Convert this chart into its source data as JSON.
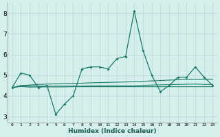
{
  "xlabel": "Humidex (Indice chaleur)",
  "x": [
    0,
    1,
    2,
    3,
    4,
    5,
    6,
    7,
    8,
    9,
    10,
    11,
    12,
    13,
    14,
    15,
    16,
    17,
    18,
    19,
    20,
    21,
    22,
    23
  ],
  "line1": [
    4.4,
    5.1,
    5.0,
    4.4,
    4.5,
    3.1,
    3.6,
    4.0,
    5.3,
    5.4,
    5.4,
    5.3,
    5.8,
    5.9,
    8.1,
    6.2,
    5.0,
    4.2,
    4.5,
    4.9,
    4.9,
    5.4,
    4.9,
    4.5
  ],
  "line2": [
    4.4,
    4.45,
    4.42,
    4.43,
    4.43,
    4.43,
    4.43,
    4.44,
    4.44,
    4.44,
    4.44,
    4.44,
    4.44,
    4.44,
    4.44,
    4.44,
    4.44,
    4.44,
    4.44,
    4.44,
    4.44,
    4.44,
    4.44,
    4.44
  ],
  "line3": [
    4.4,
    4.5,
    4.52,
    4.55,
    4.57,
    4.58,
    4.59,
    4.6,
    4.61,
    4.63,
    4.64,
    4.65,
    4.66,
    4.67,
    4.68,
    4.7,
    4.72,
    4.74,
    4.76,
    4.78,
    4.79,
    4.8,
    4.8,
    4.8
  ],
  "line4": [
    4.4,
    4.47,
    4.47,
    4.47,
    4.47,
    4.47,
    4.47,
    4.47,
    4.47,
    4.48,
    4.48,
    4.48,
    4.48,
    4.48,
    4.48,
    4.5,
    4.52,
    4.53,
    4.54,
    4.55,
    4.56,
    4.57,
    4.55,
    4.55
  ],
  "ylim": [
    2.7,
    8.5
  ],
  "xlim": [
    -0.5,
    23.5
  ],
  "yticks": [
    3,
    4,
    5,
    6,
    7,
    8
  ],
  "xtick_labels": [
    "0",
    "1",
    "2",
    "3",
    "4",
    "5",
    "6",
    "7",
    "8",
    "9",
    "10",
    "11",
    "12",
    "13",
    "14",
    "15",
    "16",
    "17",
    "18",
    "19",
    "20",
    "21",
    "22",
    "23"
  ],
  "line_color": "#1a7a6a",
  "bg_color": "#d4efec",
  "grid_color": "#b8d8d4",
  "spine_color": "#888888"
}
